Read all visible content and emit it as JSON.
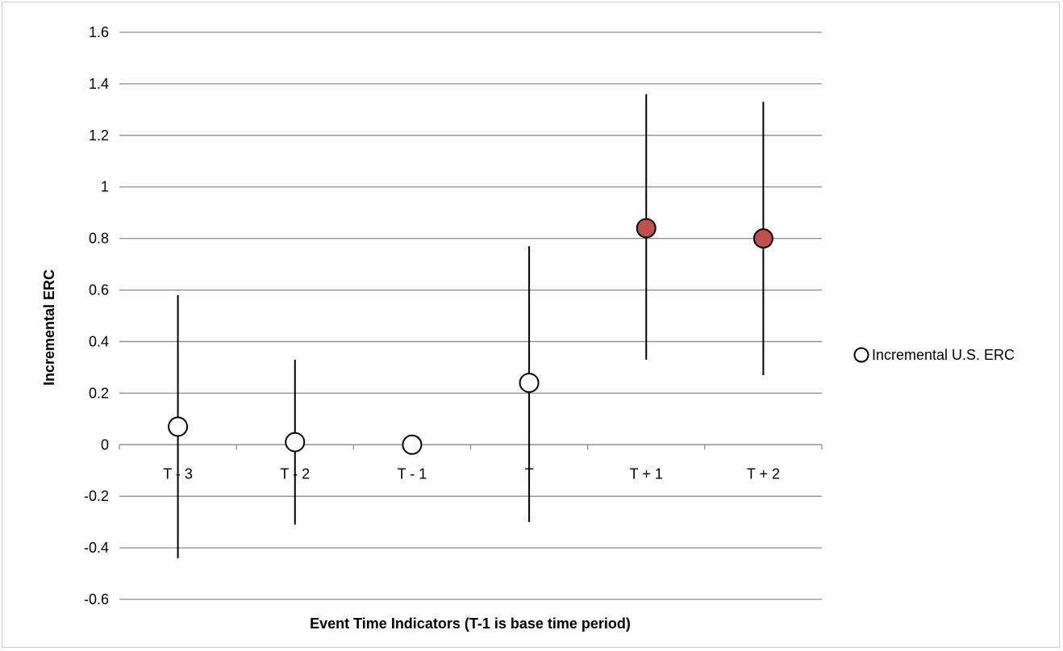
{
  "chart_data": {
    "type": "scatter",
    "title": "",
    "xlabel": "Event Time Indicators (T-1 is base time period)",
    "ylabel": "Incremental ERC",
    "categories": [
      "T - 3",
      "T - 2",
      "T - 1",
      "T",
      "T + 1",
      "T + 2"
    ],
    "ylim": [
      -0.6,
      1.6
    ],
    "yticks": [
      -0.6,
      -0.4,
      -0.2,
      0,
      0.2,
      0.4,
      0.6,
      0.8,
      1,
      1.2,
      1.4,
      1.6
    ],
    "ytick_labels": [
      "-0.6",
      "-0.4",
      "-0.2",
      "0",
      "0.2",
      "0.4",
      "0.6",
      "0.8",
      "1",
      "1.2",
      "1.4",
      "1.6"
    ],
    "grid": true,
    "legend_position": "right",
    "series": [
      {
        "name": "Incremental U.S. ERC",
        "values": [
          0.07,
          0.01,
          0.0,
          0.24,
          0.84,
          0.8
        ],
        "error_low": [
          -0.44,
          -0.31,
          null,
          -0.3,
          0.33,
          0.27
        ],
        "error_high": [
          0.58,
          0.33,
          null,
          0.77,
          1.36,
          1.33
        ],
        "filled": [
          false,
          false,
          false,
          false,
          true,
          true
        ]
      }
    ],
    "colors": {
      "filled_marker": "#c0504d",
      "open_marker": "#ffffff",
      "line": "#000000",
      "grid": "#8c8c8c"
    }
  }
}
